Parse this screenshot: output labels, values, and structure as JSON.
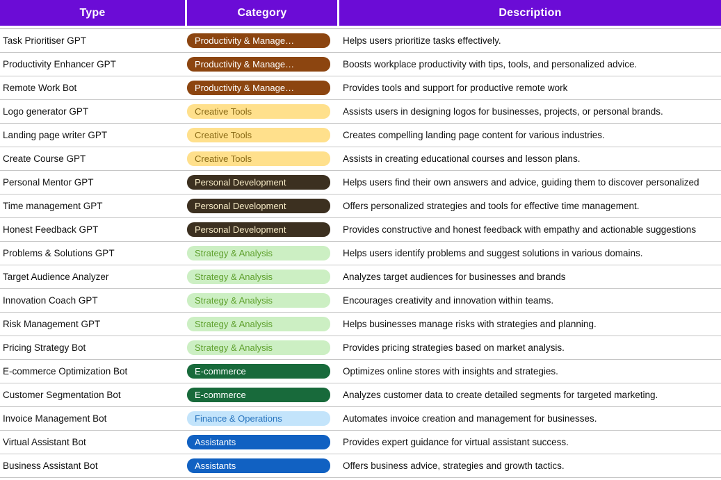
{
  "table": {
    "headers": [
      "Type",
      "Category",
      "Description"
    ],
    "rows": [
      {
        "type": "Task Prioritiser GPT",
        "category": "productivity",
        "description": "Helps users prioritize tasks effectively."
      },
      {
        "type": "Productivity Enhancer GPT",
        "category": "productivity",
        "description": "Boosts workplace productivity with tips, tools, and personalized advice."
      },
      {
        "type": "Remote Work Bot",
        "category": "productivity",
        "description": "Provides tools and support for productive remote work"
      },
      {
        "type": "Logo generator GPT",
        "category": "creative",
        "description": "Assists users in designing logos for businesses, projects, or personal brands."
      },
      {
        "type": "Landing page writer GPT",
        "category": "creative",
        "description": "Creates compelling landing page content for various industries."
      },
      {
        "type": "Create Course GPT",
        "category": "creative",
        "description": "Assists in creating educational courses and lesson plans."
      },
      {
        "type": "Personal Mentor GPT",
        "category": "personal",
        "description": "Helps users find their own answers and advice, guiding them to discover personalized"
      },
      {
        "type": "Time management GPT",
        "category": "personal",
        "description": "Offers personalized strategies and tools for effective time management."
      },
      {
        "type": "Honest Feedback GPT",
        "category": "personal",
        "description": "Provides constructive and honest feedback with empathy and actionable suggestions"
      },
      {
        "type": "Problems & Solutions GPT",
        "category": "strategy",
        "description": "Helps users identify problems and suggest solutions in various domains."
      },
      {
        "type": "Target Audience Analyzer",
        "category": "strategy",
        "description": "Analyzes target audiences for businesses and brands"
      },
      {
        "type": "Innovation Coach GPT",
        "category": "strategy",
        "description": "Encourages creativity and innovation within teams."
      },
      {
        "type": "Risk Management GPT",
        "category": "strategy",
        "description": "Helps businesses manage risks with strategies and planning."
      },
      {
        "type": "Pricing Strategy Bot",
        "category": "strategy",
        "description": "Provides pricing strategies based on market analysis."
      },
      {
        "type": "E-commerce Optimization Bot",
        "category": "ecommerce",
        "description": "Optimizes online stores with insights and strategies."
      },
      {
        "type": "Customer Segmentation Bot",
        "category": "ecommerce",
        "description": "Analyzes customer data to create detailed segments for targeted marketing."
      },
      {
        "type": "Invoice Management Bot",
        "category": "finance",
        "description": "Automates invoice creation and management for businesses."
      },
      {
        "type": "Virtual Assistant Bot",
        "category": "assistants",
        "description": "Provides expert guidance for virtual assistant success."
      },
      {
        "type": "Business Assistant Bot",
        "category": "assistants",
        "description": "Offers business advice, strategies and growth tactics."
      }
    ]
  },
  "categories": {
    "productivity": {
      "label": "Productivity & Manage…",
      "bg": "#8c4510",
      "fg": "#ffffff"
    },
    "creative": {
      "label": "Creative Tools",
      "bg": "#ffe08c",
      "fg": "#8a6a16"
    },
    "personal": {
      "label": "Personal Development",
      "bg": "#3c3020",
      "fg": "#f9edc8"
    },
    "strategy": {
      "label": "Strategy & Analysis",
      "bg": "#ccefc3",
      "fg": "#5fa12e"
    },
    "ecommerce": {
      "label": "E-commerce",
      "bg": "#186a3b",
      "fg": "#ffffff"
    },
    "finance": {
      "label": "Finance & Operations",
      "bg": "#c3e4fb",
      "fg": "#2874be"
    },
    "assistants": {
      "label": "Assistants",
      "bg": "#1161c2",
      "fg": "#ffffff"
    }
  },
  "colors": {
    "header_bg": "#6b0cd6",
    "header_fg": "#ffffff",
    "row_line": "#c6c6c6"
  }
}
